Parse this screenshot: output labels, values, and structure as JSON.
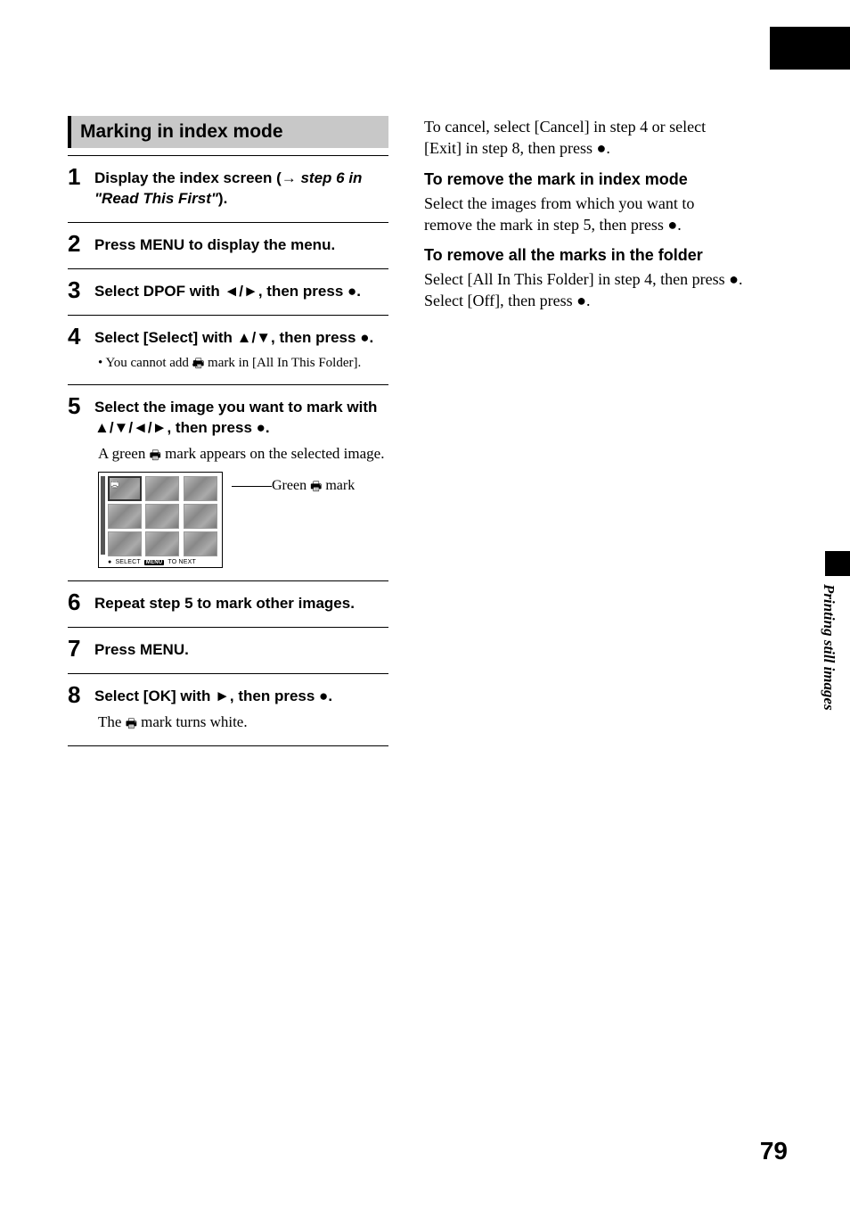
{
  "header": {
    "title": "Marking in index mode"
  },
  "side_label": "Printing still images",
  "page_number": "79",
  "steps": [
    {
      "num": "1",
      "text": "Display the index screen (→ <span class='ital'>step 6 in \"Read This First\"</span>)."
    },
    {
      "num": "2",
      "text": "Press MENU to display the menu."
    },
    {
      "num": "3",
      "text": "Select DPOF with <span class='glyph'>◄/►</span>, then press <span class='glyph'>●</span>."
    },
    {
      "num": "4",
      "text": "Select [Select] with <span class='glyph'>▲/▼</span>, then press <span class='glyph'>●</span>.",
      "bullet": "• You cannot add a <span class='print-icon'>🖶</span> mark in [All In This Folder]."
    },
    {
      "num": "5",
      "text": "Select the image you want to mark with <span class='glyph'>▲/▼/◄/►</span>, then press <span class='glyph'>●</span>.",
      "sub": "A green <span class='print-icon'>🖶</span> mark appears on the selected image.",
      "has_thumb": true
    },
    {
      "num": "6",
      "text": "Repeat step 5 to mark other images."
    },
    {
      "num": "7",
      "text": "Press MENU."
    },
    {
      "num": "8",
      "text": "Select [OK] with <span class='glyph'>►</span>, then press <span class='glyph'>●</span>.",
      "sub": "The <span class='print-icon'>🖶</span> mark turns white.",
      "last": true
    }
  ],
  "thumb": {
    "footer_select": "SELECT",
    "footer_menu": "MENU",
    "footer_next": "TO NEXT",
    "callout": "Green <span class='print-icon'>🖶</span> mark"
  },
  "right": {
    "cancel_para": "To cancel, select [Cancel] in step 4 or select [Exit] in step 8, then press ●.",
    "h1": "To remove the mark in index mode",
    "p1": "Select the images from which you want to remove the mark in step 5, then press ●.",
    "h2": "To remove all the marks in the folder",
    "p2": "Select [All In This Folder] in step 4, then press ●. Select [Off], then press ●."
  }
}
